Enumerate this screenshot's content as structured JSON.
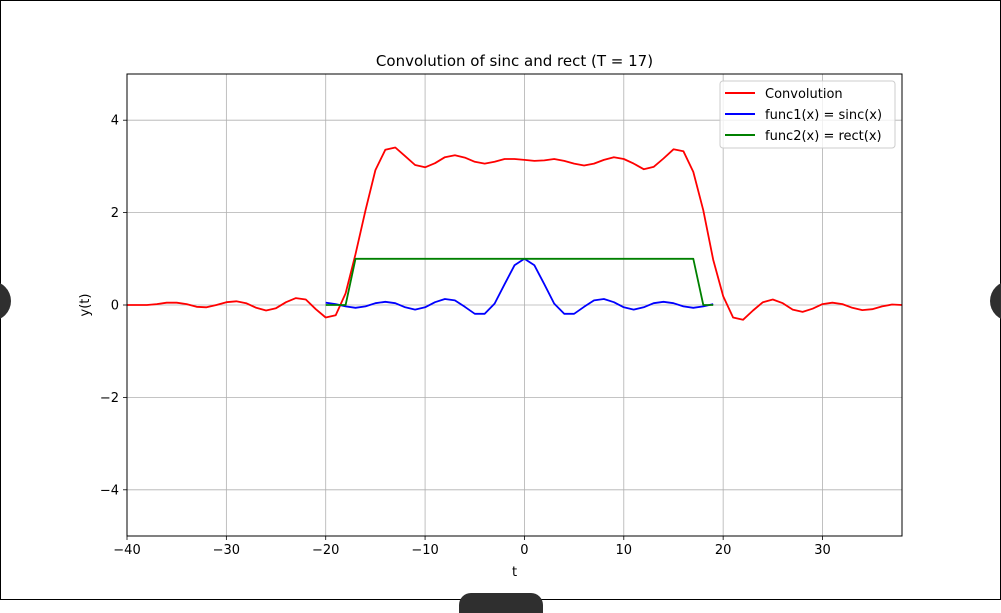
{
  "chart_data": {
    "type": "line",
    "title": "Convolution of sinc and rect (T = 17)",
    "xlabel": "t",
    "ylabel": "y(t)",
    "xlim": [
      -40,
      38
    ],
    "ylim": [
      -5,
      5
    ],
    "xticks": [
      -40,
      -30,
      -20,
      -10,
      0,
      10,
      20,
      30
    ],
    "yticks": [
      -4,
      -2,
      0,
      2,
      4
    ],
    "grid": true,
    "legend_position": "top-right",
    "series": [
      {
        "name": "Convolution",
        "color": "#ff0000",
        "x": [
          -40,
          -39,
          -38,
          -37,
          -36,
          -35,
          -34,
          -33,
          -32,
          -31,
          -30,
          -29,
          -28,
          -27,
          -26,
          -25,
          -24,
          -23,
          -22,
          -21,
          -20,
          -19,
          -18,
          -17,
          -16,
          -15,
          -14,
          -13,
          -12,
          -11,
          -10,
          -9,
          -8,
          -7,
          -6,
          -5,
          -4,
          -3,
          -2,
          -1,
          0,
          1,
          2,
          3,
          4,
          5,
          6,
          7,
          8,
          9,
          10,
          11,
          12,
          13,
          14,
          15,
          16,
          17,
          18,
          19,
          20,
          21,
          22,
          23,
          24,
          25,
          26,
          27,
          28,
          29,
          30,
          31,
          32,
          33,
          34,
          35,
          36,
          37,
          38
        ],
        "y": [
          0,
          0,
          0,
          0.02,
          0.05,
          0.05,
          0.02,
          -0.04,
          -0.05,
          0,
          0.06,
          0.08,
          0.04,
          -0.06,
          -0.12,
          -0.07,
          0.06,
          0.15,
          0.12,
          -0.09,
          -0.27,
          -0.22,
          0.25,
          1.1,
          2.05,
          2.92,
          3.36,
          3.41,
          3.22,
          3.03,
          2.98,
          3.07,
          3.2,
          3.24,
          3.19,
          3.1,
          3.06,
          3.1,
          3.16,
          3.16,
          3.14,
          3.12,
          3.13,
          3.16,
          3.12,
          3.06,
          3.02,
          3.06,
          3.14,
          3.2,
          3.16,
          3.06,
          2.94,
          2.99,
          3.17,
          3.37,
          3.33,
          2.88,
          2.05,
          0.98,
          0.19,
          -0.27,
          -0.32,
          -0.12,
          0.06,
          0.12,
          0.04,
          -0.1,
          -0.15,
          -0.08,
          0.02,
          0.05,
          0.02,
          -0.06,
          -0.11,
          -0.09,
          -0.03,
          0.01,
          0
        ]
      },
      {
        "name": "func1(x) = sinc(x)",
        "color": "#0000ff",
        "x": [
          -20,
          -19,
          -18,
          -17,
          -16,
          -15,
          -14,
          -13,
          -12,
          -11,
          -10,
          -9,
          -8,
          -7,
          -6,
          -5,
          -4,
          -3,
          -2,
          -1,
          0,
          1,
          2,
          3,
          4,
          5,
          6,
          7,
          8,
          9,
          10,
          11,
          12,
          13,
          14,
          15,
          16,
          17,
          18,
          19
        ],
        "y": [
          0.05,
          0.02,
          -0.03,
          -0.06,
          -0.03,
          0.04,
          0.07,
          0.04,
          -0.05,
          -0.1,
          -0.05,
          0.06,
          0.13,
          0.1,
          -0.04,
          -0.19,
          -0.19,
          0.03,
          0.45,
          0.86,
          1,
          0.86,
          0.45,
          0.03,
          -0.19,
          -0.19,
          -0.04,
          0.1,
          0.13,
          0.06,
          -0.05,
          -0.1,
          -0.05,
          0.04,
          0.07,
          0.04,
          -0.03,
          -0.06,
          -0.03,
          0.02
        ]
      },
      {
        "name": "func2(x) = rect(x)",
        "color": "#008000",
        "x": [
          -20,
          -18,
          -17,
          17,
          18,
          19
        ],
        "y": [
          0,
          0,
          1,
          1,
          0,
          0
        ]
      }
    ]
  }
}
